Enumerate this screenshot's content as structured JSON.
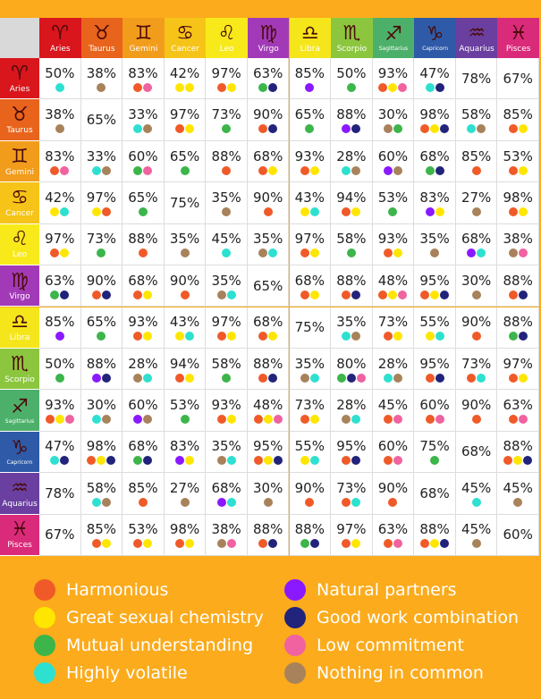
{
  "signs": [
    {
      "symbol": "♈",
      "name": "Aries",
      "color": "#d9161c"
    },
    {
      "symbol": "♉",
      "name": "Taurus",
      "color": "#e8641c"
    },
    {
      "symbol": "♊",
      "name": "Gemini",
      "color": "#f29c1c"
    },
    {
      "symbol": "♋",
      "name": "Cancer",
      "color": "#f6c418"
    },
    {
      "symbol": "♌",
      "name": "Leo",
      "color": "#f8ea1a"
    },
    {
      "symbol": "♍",
      "name": "Virgo",
      "color": "#a23ab8"
    },
    {
      "symbol": "♎",
      "name": "Libra",
      "color": "#f5e61c"
    },
    {
      "symbol": "♏",
      "name": "Scorpio",
      "color": "#8cc63f"
    },
    {
      "symbol": "♐",
      "name": "Sagittarius",
      "color": "#4db06a"
    },
    {
      "symbol": "♑",
      "name": "Capricorn",
      "color": "#2e5aa8"
    },
    {
      "symbol": "♒",
      "name": "Aquarius",
      "color": "#6a3fa0"
    },
    {
      "symbol": "♓",
      "name": "Pisces",
      "color": "#d92b7a"
    }
  ],
  "table": {
    "rows": [
      [
        {
          "text": "50%",
          "dots": [
            "#2ee0d0"
          ]
        },
        {
          "text": "38%",
          "dots": [
            "#a8825a"
          ]
        },
        {
          "text": "83%",
          "dots": [
            "#f05a28",
            "#f062a0"
          ]
        },
        {
          "text": "42%",
          "dots": [
            "#ffe600",
            "#ffe600"
          ]
        },
        {
          "text": "97%",
          "dots": [
            "#f05a28",
            "#ffe600"
          ]
        },
        {
          "text": "63%",
          "dots": [
            "#3cb54a",
            "#22237a"
          ]
        },
        {
          "text": "85%",
          "dots": [
            "#8a19ff"
          ]
        },
        {
          "text": "50%",
          "dots": [
            "#3cb54a"
          ]
        },
        {
          "text": "93%",
          "dots": [
            "#f05a28",
            "#ffe600",
            "#f062a0"
          ]
        },
        {
          "text": "47%",
          "dots": [
            "#2ee0d0",
            "#22237a"
          ]
        },
        {
          "text": "78%",
          "dots": []
        },
        {
          "text": "67%",
          "dots": []
        }
      ],
      [
        {
          "text": "38%",
          "dots": [
            "#a8825a"
          ]
        },
        {
          "text": "65%",
          "dots": []
        },
        {
          "text": "33%",
          "dots": [
            "#2ee0d0",
            "#a8825a"
          ]
        },
        {
          "text": "97%",
          "dots": [
            "#f05a28",
            "#ffe600"
          ]
        },
        {
          "text": "73%",
          "dots": [
            "#3cb54a"
          ]
        },
        {
          "text": "90%",
          "dots": [
            "#f05a28",
            "#22237a"
          ]
        },
        {
          "text": "65%",
          "dots": [
            "#3cb54a"
          ]
        },
        {
          "text": "88%",
          "dots": [
            "#8a19ff",
            "#22237a"
          ]
        },
        {
          "text": "30%",
          "dots": [
            "#a8825a",
            "#3cb54a"
          ]
        },
        {
          "text": "98%",
          "dots": [
            "#f05a28",
            "#ffe600",
            "#22237a"
          ]
        },
        {
          "text": "58%",
          "dots": [
            "#2ee0d0",
            "#a8825a"
          ]
        },
        {
          "text": "85%",
          "dots": [
            "#f05a28",
            "#ffe600"
          ]
        }
      ],
      [
        {
          "text": "83%",
          "dots": [
            "#f05a28",
            "#f062a0"
          ]
        },
        {
          "text": "33%",
          "dots": [
            "#2ee0d0",
            "#a8825a"
          ]
        },
        {
          "text": "60%",
          "dots": [
            "#3cb54a",
            "#f062a0"
          ]
        },
        {
          "text": "65%",
          "dots": [
            "#3cb54a"
          ]
        },
        {
          "text": "88%",
          "dots": [
            "#f05a28"
          ]
        },
        {
          "text": "68%",
          "dots": [
            "#f05a28",
            "#ffe600"
          ]
        },
        {
          "text": "93%",
          "dots": [
            "#f05a28",
            "#ffe600"
          ]
        },
        {
          "text": "28%",
          "dots": [
            "#2ee0d0",
            "#a8825a"
          ]
        },
        {
          "text": "60%",
          "dots": [
            "#8a19ff",
            "#a8825a"
          ]
        },
        {
          "text": "68%",
          "dots": [
            "#3cb54a",
            "#22237a"
          ]
        },
        {
          "text": "85%",
          "dots": [
            "#f05a28"
          ]
        },
        {
          "text": "53%",
          "dots": [
            "#f05a28",
            "#ffe600"
          ]
        }
      ],
      [
        {
          "text": "42%",
          "dots": [
            "#ffe600",
            "#2ee0d0"
          ]
        },
        {
          "text": "97%",
          "dots": [
            "#ffe600",
            "#f05a28"
          ]
        },
        {
          "text": "65%",
          "dots": [
            "#3cb54a"
          ]
        },
        {
          "text": "75%",
          "dots": []
        },
        {
          "text": "35%",
          "dots": [
            "#a8825a"
          ]
        },
        {
          "text": "90%",
          "dots": [
            "#f05a28"
          ]
        },
        {
          "text": "43%",
          "dots": [
            "#ffe600",
            "#2ee0d0"
          ]
        },
        {
          "text": "94%",
          "dots": [
            "#f05a28",
            "#ffe600"
          ]
        },
        {
          "text": "53%",
          "dots": [
            "#3cb54a"
          ]
        },
        {
          "text": "83%",
          "dots": [
            "#8a19ff",
            "#ffe600"
          ]
        },
        {
          "text": "27%",
          "dots": [
            "#a8825a"
          ]
        },
        {
          "text": "98%",
          "dots": [
            "#f05a28",
            "#ffe600"
          ]
        }
      ],
      [
        {
          "text": "97%",
          "dots": [
            "#f05a28",
            "#ffe600"
          ]
        },
        {
          "text": "73%",
          "dots": [
            "#3cb54a"
          ]
        },
        {
          "text": "88%",
          "dots": [
            "#f05a28"
          ]
        },
        {
          "text": "35%",
          "dots": [
            "#a8825a"
          ]
        },
        {
          "text": "45%",
          "dots": [
            "#2ee0d0"
          ]
        },
        {
          "text": "35%",
          "dots": [
            "#a8825a",
            "#2ee0d0"
          ]
        },
        {
          "text": "97%",
          "dots": [
            "#f05a28",
            "#ffe600"
          ]
        },
        {
          "text": "58%",
          "dots": [
            "#3cb54a"
          ]
        },
        {
          "text": "93%",
          "dots": [
            "#f05a28",
            "#ffe600"
          ]
        },
        {
          "text": "35%",
          "dots": [
            "#a8825a"
          ]
        },
        {
          "text": "68%",
          "dots": [
            "#8a19ff",
            "#2ee0d0"
          ]
        },
        {
          "text": "38%",
          "dots": [
            "#a8825a",
            "#f062a0"
          ]
        }
      ],
      [
        {
          "text": "63%",
          "dots": [
            "#3cb54a",
            "#22237a"
          ]
        },
        {
          "text": "90%",
          "dots": [
            "#f05a28",
            "#22237a"
          ]
        },
        {
          "text": "68%",
          "dots": [
            "#f05a28",
            "#ffe600"
          ]
        },
        {
          "text": "90%",
          "dots": [
            "#f05a28"
          ]
        },
        {
          "text": "35%",
          "dots": [
            "#a8825a",
            "#2ee0d0"
          ]
        },
        {
          "text": "65%",
          "dots": []
        },
        {
          "text": "68%",
          "dots": [
            "#f05a28",
            "#ffe600"
          ]
        },
        {
          "text": "88%",
          "dots": [
            "#f05a28",
            "#22237a"
          ]
        },
        {
          "text": "48%",
          "dots": [
            "#f05a28",
            "#ffe600",
            "#f062a0"
          ]
        },
        {
          "text": "95%",
          "dots": [
            "#f05a28",
            "#ffe600",
            "#22237a"
          ]
        },
        {
          "text": "30%",
          "dots": [
            "#a8825a"
          ]
        },
        {
          "text": "88%",
          "dots": [
            "#f05a28",
            "#22237a"
          ]
        }
      ],
      [
        {
          "text": "85%",
          "dots": [
            "#8a19ff"
          ]
        },
        {
          "text": "65%",
          "dots": [
            "#3cb54a"
          ]
        },
        {
          "text": "93%",
          "dots": [
            "#f05a28",
            "#ffe600"
          ]
        },
        {
          "text": "43%",
          "dots": [
            "#ffe600",
            "#2ee0d0"
          ]
        },
        {
          "text": "97%",
          "dots": [
            "#f05a28",
            "#ffe600"
          ]
        },
        {
          "text": "68%",
          "dots": [
            "#f05a28",
            "#ffe600"
          ]
        },
        {
          "text": "75%",
          "dots": []
        },
        {
          "text": "35%",
          "dots": [
            "#2ee0d0",
            "#a8825a"
          ]
        },
        {
          "text": "73%",
          "dots": [
            "#f05a28",
            "#ffe600"
          ]
        },
        {
          "text": "55%",
          "dots": [
            "#ffe600",
            "#2ee0d0"
          ]
        },
        {
          "text": "90%",
          "dots": [
            "#f05a28"
          ]
        },
        {
          "text": "88%",
          "dots": [
            "#3cb54a",
            "#22237a"
          ]
        }
      ],
      [
        {
          "text": "50%",
          "dots": [
            "#3cb54a"
          ]
        },
        {
          "text": "88%",
          "dots": [
            "#8a19ff",
            "#22237a"
          ]
        },
        {
          "text": "28%",
          "dots": [
            "#a8825a",
            "#2ee0d0"
          ]
        },
        {
          "text": "94%",
          "dots": [
            "#f05a28",
            "#ffe600"
          ]
        },
        {
          "text": "58%",
          "dots": [
            "#3cb54a"
          ]
        },
        {
          "text": "88%",
          "dots": [
            "#f05a28",
            "#22237a"
          ]
        },
        {
          "text": "35%",
          "dots": [
            "#a8825a",
            "#2ee0d0"
          ]
        },
        {
          "text": "80%",
          "dots": [
            "#3cb54a",
            "#22237a",
            "#f062a0"
          ]
        },
        {
          "text": "28%",
          "dots": [
            "#2ee0d0",
            "#a8825a"
          ]
        },
        {
          "text": "95%",
          "dots": [
            "#f05a28",
            "#22237a"
          ]
        },
        {
          "text": "73%",
          "dots": [
            "#f05a28",
            "#2ee0d0"
          ]
        },
        {
          "text": "97%",
          "dots": [
            "#f05a28",
            "#ffe600"
          ]
        }
      ],
      [
        {
          "text": "93%",
          "dots": [
            "#f05a28",
            "#ffe600",
            "#f062a0"
          ]
        },
        {
          "text": "30%",
          "dots": [
            "#2ee0d0",
            "#a8825a"
          ]
        },
        {
          "text": "60%",
          "dots": [
            "#8a19ff",
            "#a8825a"
          ]
        },
        {
          "text": "53%",
          "dots": [
            "#3cb54a"
          ]
        },
        {
          "text": "93%",
          "dots": [
            "#f05a28",
            "#ffe600"
          ]
        },
        {
          "text": "48%",
          "dots": [
            "#f05a28",
            "#ffe600",
            "#f062a0"
          ]
        },
        {
          "text": "73%",
          "dots": [
            "#f05a28",
            "#ffe600"
          ]
        },
        {
          "text": "28%",
          "dots": [
            "#a8825a",
            "#2ee0d0"
          ]
        },
        {
          "text": "45%",
          "dots": [
            "#f05a28",
            "#f062a0"
          ]
        },
        {
          "text": "60%",
          "dots": [
            "#f05a28",
            "#f062a0"
          ]
        },
        {
          "text": "90%",
          "dots": [
            "#f05a28"
          ]
        },
        {
          "text": "63%",
          "dots": [
            "#f05a28",
            "#f062a0"
          ]
        }
      ],
      [
        {
          "text": "47%",
          "dots": [
            "#2ee0d0",
            "#22237a"
          ]
        },
        {
          "text": "98%",
          "dots": [
            "#f05a28",
            "#ffe600",
            "#22237a"
          ]
        },
        {
          "text": "68%",
          "dots": [
            "#3cb54a",
            "#22237a"
          ]
        },
        {
          "text": "83%",
          "dots": [
            "#8a19ff",
            "#ffe600"
          ]
        },
        {
          "text": "35%",
          "dots": [
            "#a8825a",
            "#2ee0d0"
          ]
        },
        {
          "text": "95%",
          "dots": [
            "#f05a28",
            "#ffe600",
            "#22237a"
          ]
        },
        {
          "text": "55%",
          "dots": [
            "#ffe600",
            "#2ee0d0"
          ]
        },
        {
          "text": "95%",
          "dots": [
            "#f05a28",
            "#22237a"
          ]
        },
        {
          "text": "60%",
          "dots": [
            "#f05a28",
            "#f062a0"
          ]
        },
        {
          "text": "75%",
          "dots": [
            "#3cb54a"
          ]
        },
        {
          "text": "68%",
          "dots": []
        },
        {
          "text": "88%",
          "dots": [
            "#f05a28",
            "#ffe600",
            "#22237a"
          ]
        }
      ],
      [
        {
          "text": "78%",
          "dots": []
        },
        {
          "text": "58%",
          "dots": [
            "#2ee0d0",
            "#a8825a"
          ]
        },
        {
          "text": "85%",
          "dots": [
            "#f05a28"
          ]
        },
        {
          "text": "27%",
          "dots": [
            "#a8825a"
          ]
        },
        {
          "text": "68%",
          "dots": [
            "#8a19ff",
            "#2ee0d0"
          ]
        },
        {
          "text": "30%",
          "dots": [
            "#a8825a"
          ]
        },
        {
          "text": "90%",
          "dots": [
            "#f05a28"
          ]
        },
        {
          "text": "73%",
          "dots": [
            "#f05a28",
            "#2ee0d0"
          ]
        },
        {
          "text": "90%",
          "dots": [
            "#f05a28"
          ]
        },
        {
          "text": "68%",
          "dots": []
        },
        {
          "text": "45%",
          "dots": [
            "#2ee0d0"
          ]
        },
        {
          "text": "45%",
          "dots": [
            "#a8825a"
          ]
        }
      ],
      [
        {
          "text": "67%",
          "dots": []
        },
        {
          "text": "85%",
          "dots": [
            "#f05a28",
            "#ffe600"
          ]
        },
        {
          "text": "53%",
          "dots": [
            "#f05a28",
            "#ffe600"
          ]
        },
        {
          "text": "98%",
          "dots": [
            "#f05a28",
            "#ffe600"
          ]
        },
        {
          "text": "38%",
          "dots": [
            "#a8825a",
            "#f062a0"
          ]
        },
        {
          "text": "88%",
          "dots": [
            "#f05a28",
            "#22237a"
          ]
        },
        {
          "text": "88%",
          "dots": [
            "#3cb54a",
            "#22237a"
          ]
        },
        {
          "text": "97%",
          "dots": [
            "#f05a28",
            "#ffe600"
          ]
        },
        {
          "text": "63%",
          "dots": [
            "#f05a28",
            "#f062a0"
          ]
        },
        {
          "text": "88%",
          "dots": [
            "#f05a28",
            "#ffe600",
            "#22237a"
          ]
        },
        {
          "text": "45%",
          "dots": [
            "#a8825a"
          ]
        },
        {
          "text": "60%",
          "dots": []
        }
      ]
    ]
  },
  "legend": [
    {
      "label": "Harmonious",
      "color": "#f05a28"
    },
    {
      "label": "Great sexual chemistry",
      "color": "#ffe600"
    },
    {
      "label": "Mutual understanding",
      "color": "#3cb54a"
    },
    {
      "label": "Highly volatile",
      "color": "#2ee0d0"
    },
    {
      "label": "Natural partners",
      "color": "#8a19ff"
    },
    {
      "label": "Good work combination",
      "color": "#22237a"
    },
    {
      "label": "Low commitment",
      "color": "#f062a0"
    },
    {
      "label": "Nothing in common",
      "color": "#a8825a"
    }
  ]
}
